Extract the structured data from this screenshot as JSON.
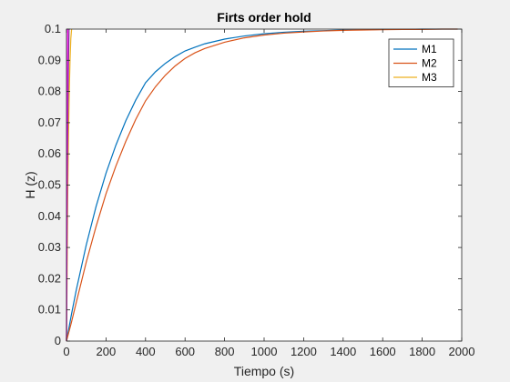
{
  "chart_data": {
    "type": "line",
    "title": "Firts order hold",
    "xlabel": "Tiempo (s)",
    "ylabel": "H (z)",
    "xlim": [
      0,
      2000
    ],
    "ylim": [
      0,
      0.1
    ],
    "xticks": [
      0,
      200,
      400,
      600,
      800,
      1000,
      1200,
      1400,
      1600,
      1800,
      2000
    ],
    "yticks": [
      0,
      0.01,
      0.02,
      0.03,
      0.04,
      0.05,
      0.06,
      0.07,
      0.08,
      0.09,
      0.1
    ],
    "xtick_labels": [
      "0",
      "200",
      "400",
      "600",
      "800",
      "1000",
      "1200",
      "1400",
      "1600",
      "1800",
      "2000"
    ],
    "ytick_labels": [
      "0",
      "0.01",
      "0.02",
      "0.03",
      "0.04",
      "0.05",
      "0.06",
      "0.07",
      "0.08",
      "0.09",
      "0.1"
    ],
    "grid": false,
    "legend_position": "top-right",
    "series": [
      {
        "name": "M1",
        "color": "#0072BD",
        "x": [
          0,
          25,
          50,
          100,
          150,
          200,
          250,
          300,
          350,
          400,
          450,
          500,
          550,
          600,
          650,
          700,
          800,
          900,
          1000,
          1100,
          1200,
          1300,
          1400,
          1500,
          1600,
          1700,
          1800,
          1900,
          1980
        ],
        "y": [
          0,
          0.0085,
          0.0165,
          0.0308,
          0.0432,
          0.0538,
          0.0628,
          0.0706,
          0.0772,
          0.0828,
          0.0863,
          0.089,
          0.0912,
          0.093,
          0.0942,
          0.0953,
          0.0968,
          0.0978,
          0.0985,
          0.099,
          0.0993,
          0.0995,
          0.0997,
          0.0998,
          0.0999,
          0.0999,
          0.1,
          0.1,
          0.1
        ]
      },
      {
        "name": "M2",
        "color": "#D95319",
        "x": [
          0,
          25,
          50,
          100,
          150,
          200,
          250,
          300,
          350,
          400,
          450,
          500,
          550,
          600,
          650,
          700,
          800,
          900,
          1000,
          1100,
          1200,
          1300,
          1400,
          1500,
          1600,
          1700,
          1800,
          1900,
          1980
        ],
        "y": [
          0,
          0.006,
          0.0125,
          0.0253,
          0.0368,
          0.0472,
          0.0561,
          0.064,
          0.071,
          0.077,
          0.0815,
          0.0852,
          0.0882,
          0.0906,
          0.0924,
          0.0938,
          0.0958,
          0.0972,
          0.0981,
          0.0987,
          0.0991,
          0.0994,
          0.0996,
          0.0997,
          0.0998,
          0.0999,
          0.0999,
          0.1,
          0.1
        ]
      },
      {
        "name": "M3",
        "color": "#EDB120",
        "x": [
          0,
          3,
          6,
          10,
          14,
          18,
          22,
          26
        ],
        "y": [
          0,
          0.02,
          0.045,
          0.065,
          0.08,
          0.09,
          0.097,
          0.1
        ]
      },
      {
        "name": "",
        "color": "#7E2F8E",
        "x": [
          0,
          2,
          4,
          7,
          10,
          13
        ],
        "y": [
          0,
          0.025,
          0.05,
          0.072,
          0.088,
          0.1
        ]
      },
      {
        "name": "",
        "color": "#FF00FF",
        "x": [
          0,
          1,
          2,
          3,
          4,
          6
        ],
        "y": [
          0,
          0.02,
          0.04,
          0.06,
          0.08,
          0.1
        ]
      }
    ]
  }
}
